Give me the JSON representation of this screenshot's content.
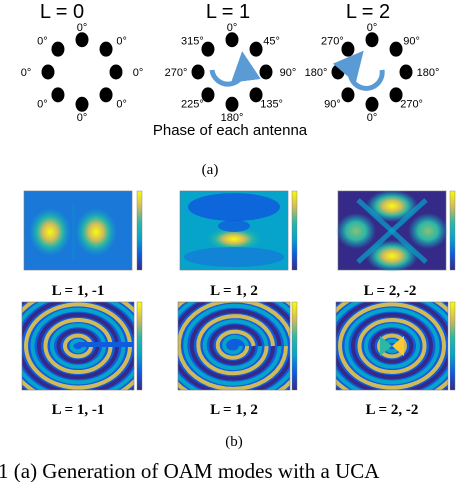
{
  "panel_a": {
    "headers": [
      "L = 0",
      "L = 1",
      "L = 2"
    ],
    "ring0": [
      "0°",
      "0°",
      "0°",
      "0°",
      "0°",
      "0°",
      "0°",
      "0°"
    ],
    "ring1": [
      "0°",
      "45°",
      "90°",
      "135°",
      "180°",
      "225°",
      "270°",
      "315°"
    ],
    "ring2": [
      "0°",
      "90°",
      "180°",
      "270°",
      "0°",
      "90°",
      "180°",
      "270°"
    ],
    "caption": "Phase of each antenna",
    "label": "(a)"
  },
  "panel_b": {
    "row1_labels": [
      "L = 1, -1",
      "L = 1, 2",
      "L = 2, -2"
    ],
    "row2_labels": [
      "L = 1, -1",
      "L = 1, 2",
      "L = 2, -2"
    ],
    "label": "(b)"
  },
  "colors": {
    "colormap": [
      "#352a87",
      "#0f5cdd",
      "#1481d6",
      "#06a4ca",
      "#2eb7a4",
      "#87bf77",
      "#d1bb59",
      "#fec832",
      "#f9fb0e"
    ],
    "arrow": "#5b9bd5"
  },
  "caption_text": "1  (a)  Generation  of  OAM  modes  with  a  UCA"
}
